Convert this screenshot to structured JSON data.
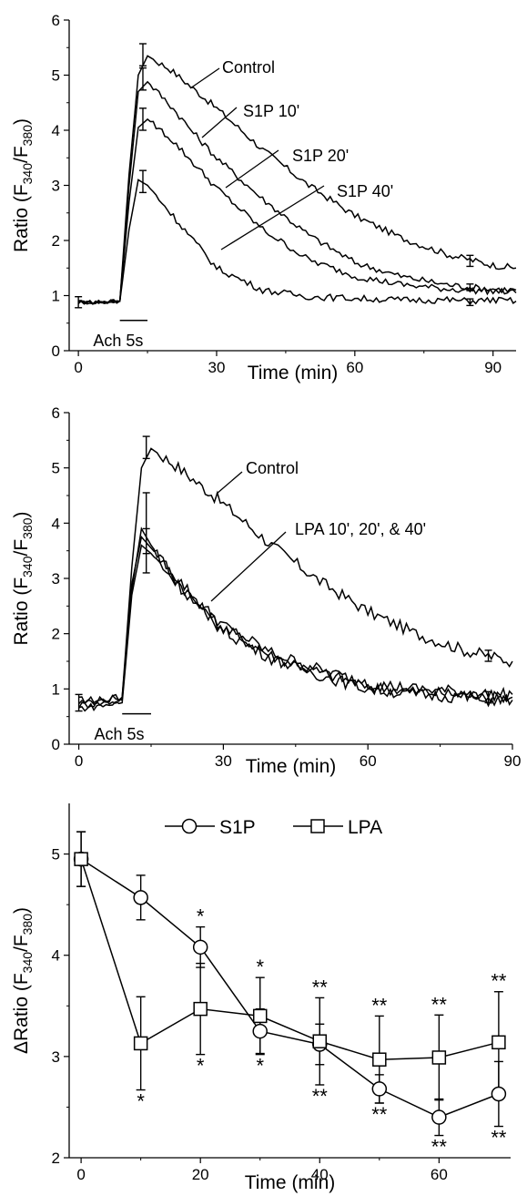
{
  "chart_data": [
    {
      "type": "line",
      "xlabel": "Time (min)",
      "ylabel": {
        "prefix": "Ratio (F",
        "sub1": "340",
        "mid": "/F",
        "sub2": "380",
        "suffix": ")"
      },
      "xlim": [
        -2,
        95
      ],
      "ylim": [
        0,
        6
      ],
      "xticks": [
        0,
        30,
        60,
        90
      ],
      "yticks": [
        0,
        1,
        2,
        3,
        4,
        5,
        6
      ],
      "stimulus_label": "Ach 5s",
      "series": [
        {
          "name": "Control",
          "x": [
            0,
            5,
            9,
            11,
            13,
            15,
            20,
            25,
            30,
            40,
            50,
            60,
            70,
            80,
            85,
            90,
            95
          ],
          "y": [
            0.88,
            0.88,
            0.9,
            3.2,
            5.0,
            5.35,
            5.1,
            4.75,
            4.4,
            3.65,
            3.0,
            2.45,
            2.05,
            1.75,
            1.65,
            1.55,
            1.5
          ]
        },
        {
          "name": "S1P 10'",
          "x": [
            0,
            5,
            9,
            11,
            13,
            15,
            20,
            25,
            30,
            40,
            50,
            60,
            70,
            80,
            85,
            90,
            95
          ],
          "y": [
            0.88,
            0.88,
            0.9,
            3.0,
            4.7,
            4.88,
            4.45,
            3.95,
            3.5,
            2.75,
            2.1,
            1.6,
            1.35,
            1.2,
            1.15,
            1.12,
            1.1
          ]
        },
        {
          "name": "S1P 20'",
          "x": [
            0,
            5,
            9,
            11,
            13,
            15,
            20,
            25,
            30,
            40,
            50,
            60,
            70,
            80,
            85,
            90,
            95
          ],
          "y": [
            0.88,
            0.88,
            0.9,
            2.7,
            4.05,
            4.2,
            3.85,
            3.4,
            2.95,
            2.2,
            1.65,
            1.35,
            1.2,
            1.12,
            1.1,
            1.08,
            1.05
          ]
        },
        {
          "name": "S1P 40'",
          "x": [
            0,
            5,
            9,
            11,
            13,
            15,
            20,
            25,
            30,
            40,
            50,
            60,
            70,
            80,
            85,
            90,
            95
          ],
          "y": [
            0.88,
            0.88,
            0.9,
            2.2,
            3.1,
            3.0,
            2.5,
            2.0,
            1.5,
            1.1,
            0.98,
            0.95,
            0.92,
            0.92,
            0.9,
            0.92,
            0.9
          ]
        }
      ],
      "error_bars": [
        {
          "x": 0,
          "y": 0.88,
          "err": 0.1
        },
        {
          "x": 14,
          "y": 5.37,
          "err": 0.2
        },
        {
          "x": 14,
          "y": 4.93,
          "err": 0.2
        },
        {
          "x": 14,
          "y": 4.2,
          "err": 0.2
        },
        {
          "x": 14,
          "y": 3.07,
          "err": 0.2
        },
        {
          "x": 85,
          "y": 1.63,
          "err": 0.1
        },
        {
          "x": 85,
          "y": 1.15,
          "err": 0.06
        },
        {
          "x": 85,
          "y": 0.88,
          "err": 0.06
        }
      ]
    },
    {
      "type": "line",
      "xlabel": "Time (min)",
      "ylabel": {
        "prefix": "Ratio (F",
        "sub1": "340",
        "mid": "/F",
        "sub2": "380",
        "suffix": ")"
      },
      "xlim": [
        -2,
        90
      ],
      "ylim": [
        0,
        6
      ],
      "xticks": [
        0,
        30,
        60,
        90
      ],
      "yticks": [
        0,
        1,
        2,
        3,
        4,
        5,
        6
      ],
      "stimulus_label": "Ach 5s",
      "series": [
        {
          "name": "Control",
          "x": [
            0,
            5,
            9,
            11,
            13,
            15,
            20,
            25,
            30,
            40,
            50,
            60,
            70,
            80,
            85,
            90
          ],
          "y": [
            0.8,
            0.8,
            0.85,
            3.2,
            5.0,
            5.35,
            5.05,
            4.7,
            4.35,
            3.6,
            2.95,
            2.4,
            2.0,
            1.7,
            1.6,
            1.5
          ]
        },
        {
          "name": "LPA 10'",
          "x": [
            0,
            5,
            9,
            11,
            13,
            15,
            20,
            25,
            30,
            40,
            50,
            60,
            70,
            80,
            85,
            90
          ],
          "y": [
            0.7,
            0.75,
            0.8,
            2.8,
            3.9,
            3.6,
            3.0,
            2.5,
            2.1,
            1.6,
            1.3,
            1.05,
            0.95,
            0.9,
            0.85,
            0.85
          ]
        },
        {
          "name": "LPA 20'",
          "x": [
            0,
            5,
            9,
            11,
            13,
            15,
            20,
            25,
            30,
            40,
            50,
            60,
            70,
            80,
            85,
            90
          ],
          "y": [
            0.75,
            0.8,
            0.85,
            2.9,
            3.75,
            3.55,
            3.05,
            2.55,
            2.15,
            1.65,
            1.35,
            1.1,
            1.0,
            0.95,
            0.9,
            0.9
          ]
        },
        {
          "name": "LPA 40'",
          "x": [
            0,
            5,
            9,
            11,
            13,
            15,
            20,
            25,
            30,
            40,
            50,
            60,
            70,
            80,
            85,
            90
          ],
          "y": [
            0.65,
            0.7,
            0.75,
            2.7,
            3.6,
            3.45,
            2.95,
            2.45,
            2.05,
            1.55,
            1.25,
            1.0,
            0.9,
            0.85,
            0.8,
            0.8
          ]
        }
      ],
      "error_bars": [
        {
          "x": 0,
          "y": 0.75,
          "err": 0.15
        },
        {
          "x": 14,
          "y": 5.37,
          "err": 0.2
        },
        {
          "x": 14,
          "y": 4.0,
          "err": 0.55
        },
        {
          "x": 14,
          "y": 3.5,
          "err": 0.4
        },
        {
          "x": 85,
          "y": 1.6,
          "err": 0.1
        },
        {
          "x": 85,
          "y": 0.85,
          "err": 0.1
        }
      ]
    },
    {
      "type": "line",
      "xlabel": "Time (min)",
      "ylabel": {
        "prefix": "ΔRatio (F",
        "sub1": "340",
        "mid": "/F",
        "sub2": "380",
        "suffix": ")"
      },
      "xlim": [
        -2,
        72
      ],
      "ylim": [
        2,
        5.5
      ],
      "xticks": [
        0,
        20,
        40,
        60
      ],
      "yticks": [
        2,
        3,
        4,
        5
      ],
      "legend": "top",
      "series": [
        {
          "name": "S1P",
          "marker": "circle",
          "x": [
            0,
            10,
            20,
            30,
            40,
            50,
            60,
            70
          ],
          "y": [
            4.95,
            4.57,
            4.08,
            3.25,
            3.12,
            2.68,
            2.4,
            2.63
          ],
          "err": [
            0.27,
            0.22,
            0.2,
            0.22,
            0.2,
            0.14,
            0.18,
            0.32
          ]
        },
        {
          "name": "LPA",
          "marker": "square",
          "x": [
            0,
            10,
            20,
            30,
            40,
            50,
            60,
            70
          ],
          "y": [
            4.95,
            3.13,
            3.47,
            3.4,
            3.15,
            2.97,
            2.99,
            3.14
          ],
          "err": [
            0.27,
            0.46,
            0.45,
            0.38,
            0.43,
            0.43,
            0.42,
            0.5
          ]
        }
      ],
      "annotations": [
        {
          "x": 20,
          "y": 4.28,
          "text": "*",
          "pos": "above"
        },
        {
          "x": 20,
          "y": 3.02,
          "text": "*",
          "pos": "below"
        },
        {
          "x": 30,
          "y": 3.78,
          "text": "*",
          "pos": "above"
        },
        {
          "x": 30,
          "y": 3.02,
          "text": "*",
          "pos": "below"
        },
        {
          "x": 10,
          "y": 2.67,
          "text": "*",
          "pos": "below"
        },
        {
          "x": 40,
          "y": 3.58,
          "text": "**",
          "pos": "above"
        },
        {
          "x": 40,
          "y": 2.72,
          "text": "**",
          "pos": "below"
        },
        {
          "x": 50,
          "y": 3.4,
          "text": "**",
          "pos": "above"
        },
        {
          "x": 50,
          "y": 2.54,
          "text": "**",
          "pos": "below"
        },
        {
          "x": 60,
          "y": 3.41,
          "text": "**",
          "pos": "above"
        },
        {
          "x": 60,
          "y": 2.22,
          "text": "**",
          "pos": "below"
        },
        {
          "x": 70,
          "y": 3.64,
          "text": "**",
          "pos": "above"
        },
        {
          "x": 70,
          "y": 2.31,
          "text": "**",
          "pos": "below"
        }
      ]
    }
  ],
  "labels": {
    "p1_control": "Control",
    "p1_s1p10": "S1P 10'",
    "p1_s1p20": "S1P 20'",
    "p1_s1p40": "S1P 40'",
    "p2_control": "Control",
    "p2_lpa": "LPA 10', 20', & 40'",
    "legend_s1p": "S1P",
    "legend_lpa": "LPA"
  }
}
